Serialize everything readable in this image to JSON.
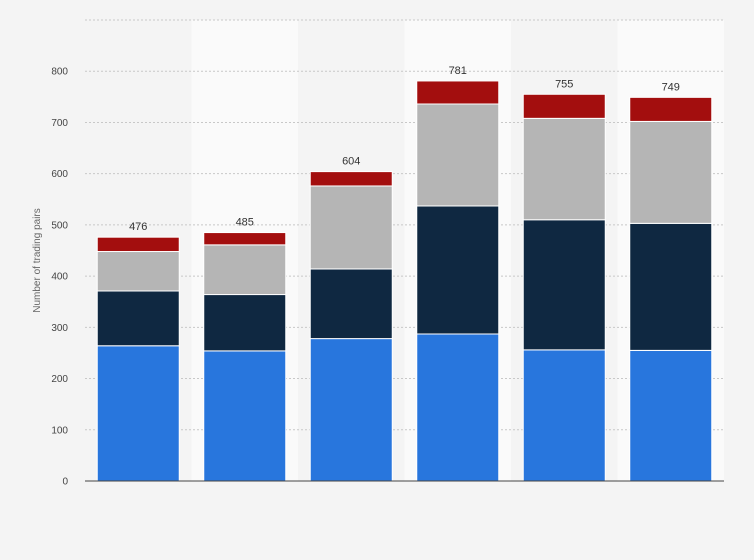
{
  "chart_data": {
    "type": "bar",
    "stacked": true,
    "title": "",
    "xlabel": "",
    "ylabel": "Number of trading pairs",
    "ylim": [
      0,
      900
    ],
    "yticks": [
      "0",
      "100",
      "200",
      "300",
      "400",
      "500",
      "600",
      "700",
      "800"
    ],
    "grid": true,
    "categories": [
      "",
      "",
      "",
      "",
      "",
      ""
    ],
    "totals": [
      "476",
      "485",
      "604",
      "781",
      "755",
      "749"
    ],
    "series": [
      {
        "color": "#2876dd",
        "values": [
          264,
          254,
          278,
          287,
          256,
          255
        ]
      },
      {
        "color": "#0f2841",
        "values": [
          107,
          110,
          136,
          250,
          254,
          248
        ]
      },
      {
        "color": "#b5b5b5",
        "values": [
          77,
          97,
          162,
          199,
          198,
          199
        ]
      },
      {
        "color": "#a30e0e",
        "values": [
          28,
          24,
          28,
          45,
          47,
          47
        ]
      }
    ]
  }
}
